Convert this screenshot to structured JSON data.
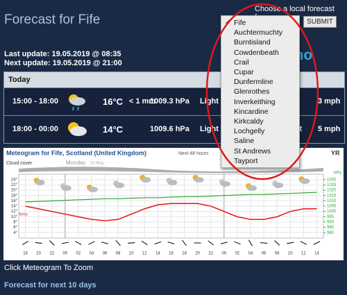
{
  "header": {
    "title": "Forecast for Fife",
    "chooser_label": "Choose a local forecast for:",
    "submit": "SUBMIT",
    "brand": "yr.no"
  },
  "dropdown": {
    "selected": 0,
    "options": [
      "Fife",
      "Auchtermuchty",
      "Burntisland",
      "Cowdenbeath",
      "Crail",
      "Cupar",
      "Dunfermline",
      "Glenrothes",
      "Inverkeithing",
      "Kincardine",
      "Kirkcaldy",
      "Lochgelly",
      "Saline",
      "St Andrews",
      "Tayport"
    ]
  },
  "updates": {
    "last": "Last update: 19.05.2019 @ 08:35",
    "next": "Next update: 19.05.2019 @ 21:00"
  },
  "today": {
    "header": "Today",
    "rows": [
      {
        "time": "15:00 - 18:00",
        "temp": "16°C",
        "precip": "< 1 mm",
        "pressure": "1009.3 hPa",
        "wind": "Light air",
        "speed": "3 mph"
      },
      {
        "time": "18:00 - 00:00",
        "temp": "14°C",
        "pressure": "1009.6 hPa",
        "wind": "Light breeze from southeast",
        "speed": "5 mph"
      }
    ]
  },
  "meteogram": {
    "title": "Meteogram for Fife, Scotland (United Kingdom)",
    "subtitle": "Next 48 hours",
    "cloud_label": "Cloud cover",
    "day_label": "Monday",
    "day_date": "20 May",
    "temp_label": "Temp",
    "y2_unit": "hPa",
    "brand": "YR",
    "categories": [
      "18",
      "20",
      "22",
      "00",
      "02",
      "04",
      "06",
      "08",
      "10",
      "12",
      "14",
      "16",
      "18",
      "20",
      "22",
      "00",
      "02",
      "04",
      "06",
      "08",
      "10",
      "12",
      "14"
    ],
    "ylim": [
      3,
      25
    ],
    "yticks": [
      {
        "value": 24,
        "label": "24°"
      },
      {
        "value": 22,
        "label": "22°"
      },
      {
        "value": 20,
        "label": "20°"
      },
      {
        "value": 18,
        "label": "18°"
      },
      {
        "value": 16,
        "label": "16°"
      },
      {
        "value": 14,
        "label": "14°"
      },
      {
        "value": 12,
        "label": "12°"
      },
      {
        "value": 10,
        "label": "10°"
      },
      {
        "value": 8,
        "label": "8°"
      },
      {
        "value": 6,
        "label": "6°"
      },
      {
        "value": 4,
        "label": "4°"
      }
    ],
    "y2lim": [
      977.5,
      1032.5
    ],
    "y2ticks": [
      1030,
      1025,
      1020,
      1015,
      1010,
      1005,
      1000,
      995,
      990,
      985,
      980
    ],
    "grid": true,
    "series": [
      {
        "name": "Temperature",
        "color": "#e52222",
        "values": [
          14,
          13,
          12,
          11,
          10,
          9,
          8.5,
          9,
          11,
          13,
          14.5,
          15,
          15,
          15,
          14,
          12,
          10,
          9,
          9,
          10,
          12,
          13,
          13
        ]
      },
      {
        "name": "Pressure",
        "color": "#2fa82f",
        "axis": "y2",
        "values": [
          1009,
          1009.5,
          1010,
          1010.5,
          1011,
          1011.5,
          1012,
          1012,
          1012.5,
          1013,
          1013,
          1013.5,
          1014,
          1014,
          1014.5,
          1015,
          1015.5,
          1016,
          1016,
          1016.5,
          1017,
          1017.5,
          1018
        ]
      }
    ]
  },
  "links": {
    "zoom": "Click Meteogram To Zoom",
    "ten_days": "Forecast for next 10 days"
  }
}
